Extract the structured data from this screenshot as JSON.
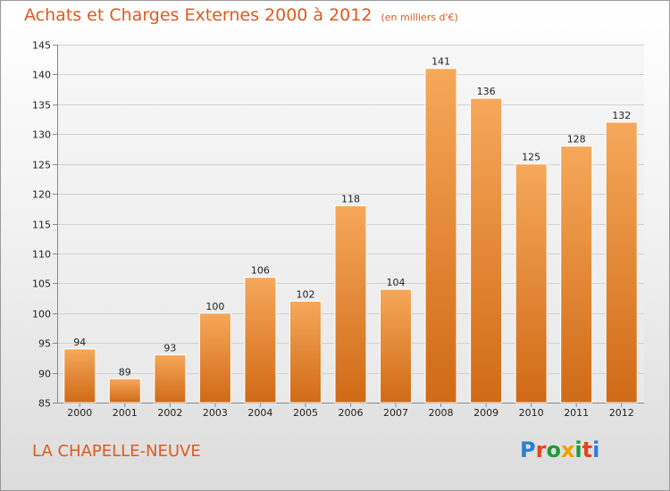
{
  "header": {
    "title": "Achats et Charges Externes 2000 à 2012",
    "unit": "(en milliers d'€)"
  },
  "footer": {
    "commune": "LA CHAPELLE-NEUVE",
    "logo": "Proxiti"
  },
  "colors": {
    "bar_top": "#f6a85a",
    "bar_bottom": "#d06a16",
    "accent": "#e05a1e"
  },
  "chart_data": {
    "type": "bar",
    "title": "Achats et Charges Externes 2000 à 2012",
    "subtitle": "(en milliers d'€)",
    "xlabel": "",
    "ylabel": "",
    "categories": [
      "2000",
      "2001",
      "2002",
      "2003",
      "2004",
      "2005",
      "2006",
      "2007",
      "2008",
      "2009",
      "2010",
      "2011",
      "2012"
    ],
    "values": [
      94,
      89,
      93,
      100,
      106,
      102,
      118,
      104,
      141,
      136,
      125,
      128,
      132
    ],
    "ylim": [
      85,
      145
    ],
    "yticks": [
      85,
      90,
      95,
      100,
      105,
      110,
      115,
      120,
      125,
      130,
      135,
      140,
      145
    ],
    "grid": true,
    "data_labels": true
  }
}
